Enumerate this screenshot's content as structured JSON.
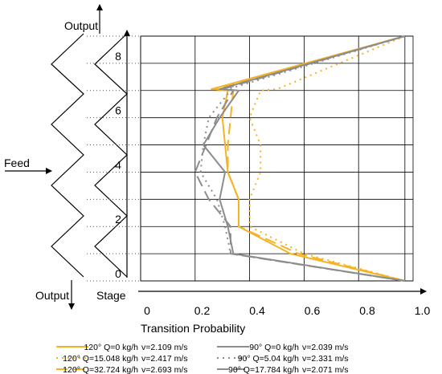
{
  "chart_data": {
    "type": "line",
    "orientation": "x-probability-y-stage",
    "xlabel": "Transition Probability",
    "ylabel": "Stage",
    "xlim": [
      0,
      1.0
    ],
    "ylim": [
      0,
      9
    ],
    "xticks": [
      0,
      0.2,
      0.4,
      0.6,
      0.8,
      1.0
    ],
    "xtick_labels": [
      "0",
      "0.2",
      "0.4",
      "0.6",
      "0.8",
      "1.0"
    ],
    "yticks": [
      0,
      2,
      4,
      6,
      8
    ],
    "ytick_labels": [
      "0",
      "2",
      "4",
      "6",
      "8"
    ],
    "grid": true,
    "legend_position": "bottom",
    "colors": {
      "orange": "#f5b324",
      "gray": "#8c8c8c"
    },
    "series": [
      {
        "name": "120°  Q=0 kg/h",
        "velocity": "v=2.109 m/s",
        "color": "#f5b324",
        "dash": "solid",
        "x": [
          0.97,
          0.55,
          0.36,
          0.36,
          0.32,
          0.31,
          0.3,
          0.32,
          0.26,
          0.97
        ],
        "y": [
          0,
          1,
          2,
          3,
          4,
          5,
          6,
          7,
          7.05,
          9
        ]
      },
      {
        "name": "120°  Q=15.048 kg/h",
        "velocity": "v=2.417 m/s",
        "color": "#f5b324",
        "dash": "dot",
        "x": [
          0.97,
          0.6,
          0.4,
          0.4,
          0.44,
          0.44,
          0.4,
          0.44,
          0.5,
          0.97
        ],
        "y": [
          0,
          1,
          2,
          3,
          4,
          5,
          6,
          7,
          7.05,
          9
        ]
      },
      {
        "name": "120°  Q=32.724 kg/h",
        "velocity": "v=2.693 m/s",
        "color": "#f5b324",
        "dash": "dash",
        "x": [
          0.97,
          0.58,
          0.36,
          0.36,
          0.32,
          0.32,
          0.33,
          0.34,
          0.28,
          0.97
        ],
        "y": [
          0,
          1,
          2,
          3,
          4,
          5,
          6,
          7,
          7.05,
          9
        ]
      },
      {
        "name": "90°  Q=0 kg/h",
        "velocity": "v=2.039 m/s",
        "color": "#8c8c8c",
        "dash": "solid",
        "x": [
          0.97,
          0.34,
          0.32,
          0.29,
          0.31,
          0.23,
          0.29,
          0.36,
          0.29,
          0.97
        ],
        "y": [
          0,
          1,
          2,
          3,
          4,
          5,
          6,
          7,
          7.05,
          9
        ]
      },
      {
        "name": "90°  Q=5.04 kg/h",
        "velocity": "v=2.331 m/s",
        "color": "#8c8c8c",
        "dash": "dot",
        "x": [
          0.97,
          0.33,
          0.31,
          0.28,
          0.22,
          0.23,
          0.25,
          0.33,
          0.32,
          0.97
        ],
        "y": [
          0,
          1,
          2,
          3,
          4,
          5,
          6,
          7,
          7.05,
          9
        ]
      },
      {
        "name": "90°  Q=17.784 kg/h",
        "velocity": "v=2.071 m/s",
        "color": "#8c8c8c",
        "dash": "dash",
        "x": [
          0.97,
          0.33,
          0.33,
          0.25,
          0.2,
          0.24,
          0.28,
          0.34,
          0.3,
          0.97
        ],
        "y": [
          0,
          1,
          2,
          3,
          4,
          5,
          6,
          7,
          7.05,
          9
        ]
      }
    ],
    "annotations": {
      "feed": "Feed",
      "output_top": "Output",
      "output_bottom": "Output"
    }
  }
}
